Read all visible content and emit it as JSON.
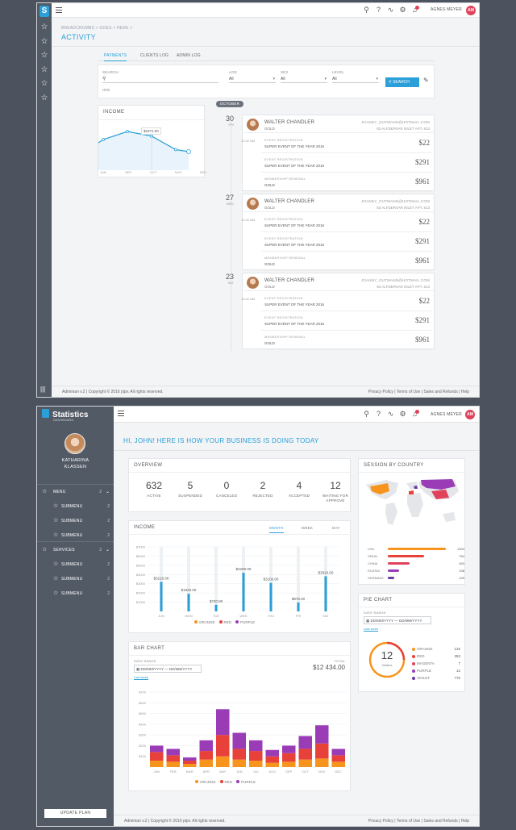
{
  "screen1": {
    "user": "AGNES MEYER",
    "user_initials": "AM",
    "breadcrumbs": "BREADCRUMBS > GOES > HERE >",
    "title": "ACTIVITY",
    "tabs": [
      "PAYMENTS",
      "CLIENTS LOG",
      "ADMIN LOG"
    ],
    "filters": {
      "search_label": "SEARCH",
      "search_hint": "ID/E",
      "age_label": "AGE",
      "sex_label": "SEX",
      "level_label": "LEVEL",
      "all": "All",
      "search_button": "SEARCH"
    },
    "income_title": "INCOME",
    "income_tooltip": "$2371.00",
    "income_months": [
      "JUN",
      "SEP",
      "OCT",
      "NOV",
      "DEC"
    ],
    "income_chart_data": {
      "type": "line",
      "x": [
        "JUN",
        "SEP",
        "OCT",
        "NOV",
        "DEC"
      ],
      "values": [
        2200,
        2600,
        2371,
        1700,
        1600
      ]
    },
    "month_pill": "OCTOBER",
    "days": [
      {
        "day": "30",
        "dow": "FRI"
      },
      {
        "day": "27",
        "dow": "WED"
      },
      {
        "day": "23",
        "dow": "SAT"
      }
    ],
    "time": "12:42 AM",
    "activity": {
      "name": "WALTER CHANDLER",
      "level": "GOLD",
      "email": "JOANNY_GUTMANN@HOTMAIL.COM",
      "address": "83 ALFDERVAR INLET APT. 813",
      "rows": [
        {
          "type": "EVENT REGISTRATION",
          "desc": "SUPER EVENT OF THE YEAR 2016",
          "amount": "$22"
        },
        {
          "type": "EVENT REGISTRATION",
          "desc": "SUPER EVENT OF THE YEAR 2016",
          "amount": "$291"
        },
        {
          "type": "MEMBERSHIP RENEWAL",
          "desc": "GOLD",
          "amount": "$961"
        }
      ]
    },
    "footer_left": "Adminian v.2 | Copyright © 2016 plpv. All rights reserved.",
    "footer_right": "Privacy Policy | Terms of Use | Sales and Refunds | Help"
  },
  "screen2": {
    "logo": "Statistics",
    "logo_sub": "DASHBOARD",
    "profile_name_1": "KATHARINA",
    "profile_name_2": "KLASSEN",
    "menu_label": "MENU",
    "menu_count": "2",
    "services_label": "SERVICES",
    "services_count": "2",
    "submenu_label": "SUBMENU",
    "submenu_count": "2",
    "update_plan": "UPDATE PLAN",
    "user": "AGNES MEYER",
    "user_initials": "AM",
    "greeting": "HI, JOHN! HERE IS HOW YOUR BUSINESS IS DOING TODAY",
    "overview": {
      "title": "OVERVIEW",
      "items": [
        {
          "value": "632",
          "label": "ACTIVE"
        },
        {
          "value": "5",
          "label": "SUSPENDED"
        },
        {
          "value": "0",
          "label": "CANCELED"
        },
        {
          "value": "2",
          "label": "REJECTED"
        },
        {
          "value": "4",
          "label": "ACCEPTED"
        },
        {
          "value": "12",
          "label": "WAITING FOR APPROVE"
        }
      ]
    },
    "income": {
      "title": "INCOME",
      "tabs": [
        "MONTH",
        "WEEK",
        "DAY"
      ],
      "legend": [
        "ORANGE",
        "RED",
        "PURPLE"
      ]
    },
    "income_chart_data": {
      "type": "bar",
      "categories": [
        "JUN",
        "MON",
        "TUE",
        "WED",
        "THU",
        "FRI",
        "SAT"
      ],
      "values": [
        3210,
        1920,
        720,
        4200,
        3100,
        975,
        3810
      ],
      "labels": [
        "$3210.00",
        "$1920.00",
        "$720.00",
        "$4200.00",
        "$3100.00",
        "$975.00",
        "$3810.00"
      ],
      "y_ticks": [
        "$7000",
        "$6000",
        "$5000",
        "$4000",
        "$3000",
        "$2000",
        "$1000"
      ],
      "ylim": [
        0,
        7000
      ]
    },
    "bar_chart": {
      "title": "BAR CHART",
      "date_range_label": "DATE RANGE",
      "date_range_value": "DD/MM/YYYY — DD/MM/YYYY",
      "link": "Last week",
      "total_label": "TOTAL",
      "total_value": "$12 434.00",
      "legend": [
        "ORANGE",
        "RED",
        "PURPLE"
      ]
    },
    "bar_chart_data": {
      "type": "bar",
      "stacked": true,
      "categories": [
        "JAN",
        "FEB",
        "MAR",
        "APR",
        "MAY",
        "JUN",
        "JUL",
        "AUG",
        "SEP",
        "OCT",
        "NOV",
        "DEC"
      ],
      "y_ticks": [
        "$700",
        "$600",
        "$500",
        "$400",
        "$300",
        "$200",
        "$100"
      ],
      "ylim": [
        0,
        700
      ],
      "series": [
        {
          "name": "ORANGE",
          "values": [
            60,
            50,
            30,
            70,
            100,
            70,
            60,
            40,
            50,
            70,
            80,
            50
          ]
        },
        {
          "name": "RED",
          "values": [
            80,
            60,
            30,
            80,
            200,
            100,
            90,
            60,
            80,
            100,
            140,
            60
          ]
        },
        {
          "name": "PURPLE",
          "values": [
            60,
            60,
            30,
            100,
            240,
            150,
            100,
            60,
            70,
            120,
            170,
            60
          ]
        }
      ],
      "colors": [
        "#f7941d",
        "#e8413a",
        "#9b3cb7"
      ]
    },
    "session": {
      "title": "SESSION BY COUNTRY",
      "countries": [
        {
          "name": "USA",
          "value": "1204",
          "pct": 1.0,
          "color": "#f7941d"
        },
        {
          "name": "SPAIN",
          "value": "754",
          "pct": 0.63,
          "color": "#e8413a"
        },
        {
          "name": "CHINA",
          "value": "453",
          "pct": 0.38,
          "color": "#e0415b"
        },
        {
          "name": "RUSSIA",
          "value": "238",
          "pct": 0.2,
          "color": "#9b3cb7"
        },
        {
          "name": "GERMANY",
          "value": "129",
          "pct": 0.11,
          "color": "#6a3ca0"
        }
      ]
    },
    "pie": {
      "title": "PIE CHART",
      "date_range_label": "DATE RANGE",
      "date_range_value": "DD/MM/YYYY — DD/MM/YYYY",
      "link": "Last week",
      "center_value": "12",
      "center_label": "Visitors",
      "legend": [
        {
          "name": "ORANGE",
          "value": "132",
          "color": "#f7941d"
        },
        {
          "name": "RED",
          "value": "353",
          "color": "#e8413a"
        },
        {
          "name": "MAGENTA",
          "value": "7",
          "color": "#e0415b"
        },
        {
          "name": "PURPLE",
          "value": "12",
          "color": "#9b3cb7"
        },
        {
          "name": "VIOLET",
          "value": "770",
          "color": "#6a3ca0"
        }
      ]
    },
    "footer_left": "Adminian v.2 | Copyright © 2016 plpv. All rights reserved.",
    "footer_right": "Privacy Policy | Terms of Use | Sales and Refunds | Help"
  }
}
